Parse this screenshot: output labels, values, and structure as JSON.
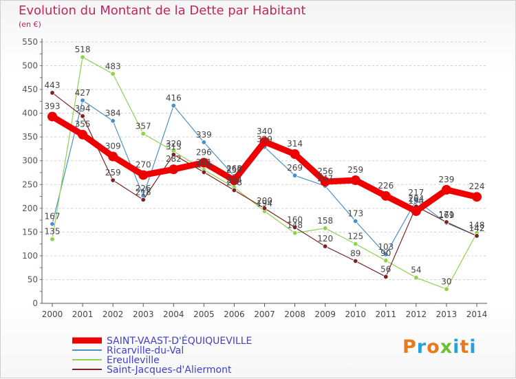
{
  "header": {
    "title": "Evolution du Montant de la Dette par Habitant",
    "subtitle": "(en €)"
  },
  "logo": {
    "text": "Proxiti",
    "letter_colors": [
      "#e87a1e",
      "#2aa0d8",
      "#e87a1e",
      "#6cbf2f",
      "#2aa0d8",
      "#e87a1e",
      "#2aa0d8"
    ]
  },
  "chart_data": {
    "type": "line",
    "title": "Evolution du Montant de la Dette par Habitant",
    "subtitle": "(en €)",
    "xlabel": "",
    "ylabel": "",
    "x": [
      "2000",
      "2001",
      "2002",
      "2003",
      "2004",
      "2005",
      "2006",
      "2007",
      "2008",
      "2009",
      "2010",
      "2011",
      "2012",
      "2013",
      "2014"
    ],
    "ylim": [
      0,
      550
    ],
    "yticks": [
      0,
      50,
      100,
      150,
      200,
      250,
      300,
      350,
      400,
      450,
      500,
      550
    ],
    "grid": "horizontal-dashed",
    "legend_position": "bottom-left",
    "series": [
      {
        "name": "Ricarville-du-Val",
        "color": "#4a90c8",
        "values": [
          167,
          427,
          384,
          226,
          416,
          339,
          268,
          329,
          269,
          247,
          173,
          103,
          217,
          169,
          142
        ]
      },
      {
        "name": "Ereulleville",
        "color": "#8ed14c",
        "values": [
          135,
          518,
          483,
          357,
          320,
          281,
          244,
          194,
          148,
          158,
          125,
          90,
          54,
          30,
          148
        ]
      },
      {
        "name": "Saint-Jacques-d'Aliermont",
        "color": "#7a2323",
        "values": [
          443,
          394,
          259,
          218,
          313,
          276,
          238,
          200,
          160,
          120,
          89,
          56,
          204,
          171,
          142
        ]
      },
      {
        "name": "SAINT-VAAST-D'ÉQUIQUEVILLE",
        "color": "#ee0000",
        "values": [
          393,
          355,
          309,
          270,
          282,
          296,
          259,
          340,
          314,
          256,
          259,
          226,
          194,
          239,
          224
        ]
      }
    ]
  }
}
